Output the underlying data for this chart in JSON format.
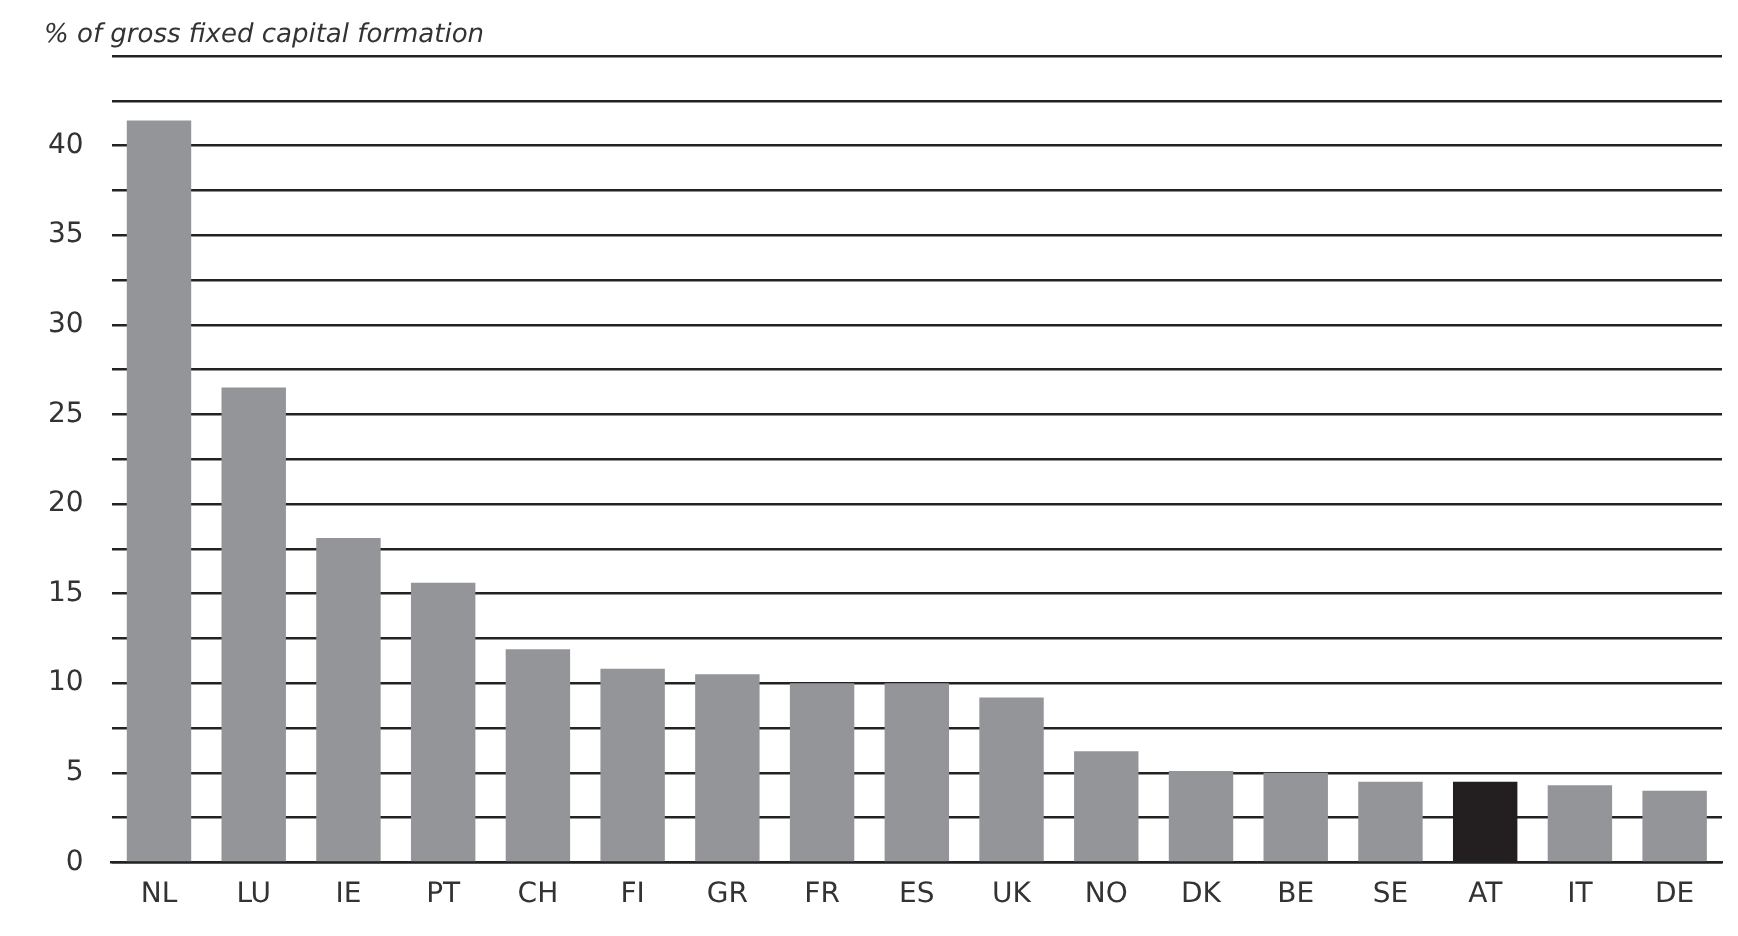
{
  "chart_data": {
    "type": "bar",
    "ylabel": "% of gross fixed capital formation",
    "categories": [
      "NL",
      "LU",
      "IE",
      "PT",
      "CH",
      "FI",
      "GR",
      "FR",
      "ES",
      "UK",
      "NO",
      "DK",
      "BE",
      "SE",
      "AT",
      "IT",
      "DE"
    ],
    "values": [
      41.4,
      26.5,
      18.1,
      15.6,
      11.9,
      10.8,
      10.5,
      10.0,
      10.0,
      9.2,
      6.2,
      5.1,
      5.0,
      4.5,
      4.5,
      4.3,
      4.0
    ],
    "colors": [
      "#939598",
      "#939598",
      "#939598",
      "#939598",
      "#939598",
      "#939598",
      "#939598",
      "#939598",
      "#939598",
      "#939598",
      "#939598",
      "#939598",
      "#939598",
      "#939598",
      "#231f20",
      "#939598",
      "#939598"
    ],
    "ylim": [
      0,
      45
    ],
    "yticks": [
      0,
      {
        "value": 2.5,
        "label": null
      },
      5,
      {
        "value": 7.5,
        "label": null
      },
      10,
      {
        "value": 12.5,
        "label": null
      },
      15,
      {
        "value": 17.5,
        "label": null
      },
      20,
      {
        "value": 22.5,
        "label": null
      },
      25,
      {
        "value": 27.5,
        "label": null
      },
      30,
      {
        "value": 32.5,
        "label": null
      },
      35,
      {
        "value": 37.5,
        "label": null
      },
      40,
      {
        "value": 45,
        "label": null
      },
      {
        "value": 42.5,
        "label": null
      }
    ],
    "grid": "y",
    "legend": false
  }
}
